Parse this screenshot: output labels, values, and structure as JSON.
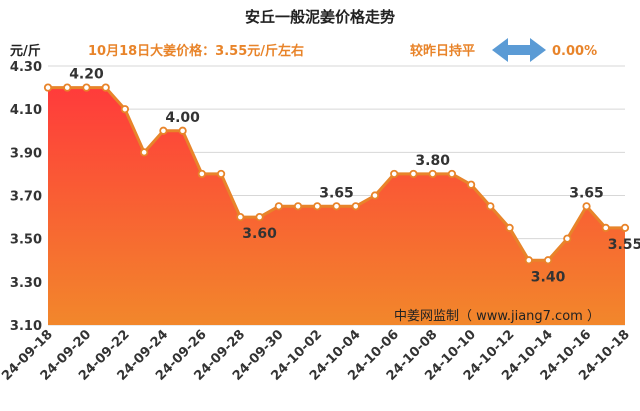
{
  "chart_data": {
    "type": "area",
    "title": "安丘一般泥姜价格走势",
    "ylabel": "元/斤",
    "ylim": [
      3.1,
      4.3
    ],
    "yticks": [
      "3.10",
      "3.30",
      "3.50",
      "3.70",
      "3.90",
      "4.10",
      "4.30"
    ],
    "x": [
      "09-18",
      "09-19",
      "09-20",
      "09-21",
      "09-22",
      "09-23",
      "09-24",
      "09-25",
      "09-26",
      "09-27",
      "09-28",
      "09-29",
      "09-30",
      "10-01",
      "10-02",
      "10-03",
      "10-04",
      "10-05",
      "10-06",
      "10-07",
      "10-08",
      "10-09",
      "10-10",
      "10-11",
      "10-12",
      "10-13",
      "10-14",
      "10-15",
      "10-16",
      "10-17",
      "10-18"
    ],
    "xtick_labels": [
      "24-09-18",
      "24-09-20",
      "24-09-22",
      "24-09-24",
      "24-09-26",
      "24-09-28",
      "24-09-30",
      "24-10-02",
      "24-10-04",
      "24-10-06",
      "24-10-08",
      "24-10-10",
      "24-10-12",
      "24-10-14",
      "24-10-16",
      "24-10-18"
    ],
    "values": [
      4.2,
      4.2,
      4.2,
      4.2,
      4.1,
      3.9,
      4.0,
      4.0,
      3.8,
      3.8,
      3.6,
      3.6,
      3.65,
      3.65,
      3.65,
      3.65,
      3.65,
      3.7,
      3.8,
      3.8,
      3.8,
      3.8,
      3.75,
      3.65,
      3.55,
      3.4,
      3.4,
      3.5,
      3.65,
      3.55,
      3.55
    ],
    "data_labels": [
      {
        "index": 2,
        "text": "4.20",
        "pos": "above"
      },
      {
        "index": 7,
        "text": "4.00",
        "pos": "above"
      },
      {
        "index": 11,
        "text": "3.60",
        "pos": "below"
      },
      {
        "index": 15,
        "text": "3.65",
        "pos": "above"
      },
      {
        "index": 20,
        "text": "3.80",
        "pos": "above"
      },
      {
        "index": 26,
        "text": "3.40",
        "pos": "below"
      },
      {
        "index": 28,
        "text": "3.65",
        "pos": "above"
      },
      {
        "index": 30,
        "text": "3.55",
        "pos": "below"
      }
    ],
    "grid": true
  },
  "annotation": {
    "price_note": "10月18日大姜价格：3.55元/斤左右",
    "change_label": "较昨日持平",
    "change_value": "0.00%",
    "watermark": "中姜网监制（ www.jiang7.com ）"
  },
  "colors": {
    "line": "#e8842a",
    "fill_top": "#ff3b3b",
    "fill_bottom": "#f2872b",
    "note": "#e8842a",
    "arrow": "#5b9bd5"
  }
}
